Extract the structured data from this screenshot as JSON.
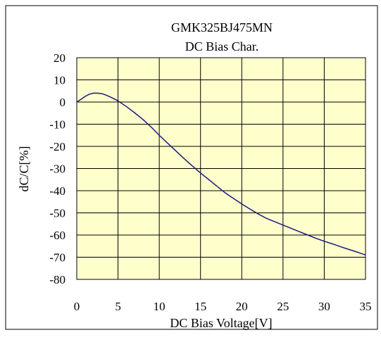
{
  "chart_data": {
    "type": "line",
    "title": "GMK325BJ475MN",
    "subtitle": "DC Bias Char.",
    "xlabel": "DC Bias Voltage[V]",
    "ylabel": "dC/C[%]",
    "xlim": [
      0,
      35
    ],
    "ylim": [
      -80,
      20
    ],
    "x_ticks": [
      "0",
      "5",
      "10",
      "15",
      "20",
      "25",
      "30",
      "35"
    ],
    "y_ticks": [
      "20",
      "10",
      "0",
      "-10",
      "-20",
      "-30",
      "-40",
      "-50",
      "-60",
      "-70",
      "-80"
    ],
    "grid": true,
    "legend": "none",
    "colors": {
      "plot_background": "#ffffcc",
      "line": "#1a1a80",
      "grid": "#000000"
    },
    "series": [
      {
        "x": [
          0,
          0.5,
          1,
          1.5,
          2,
          2.5,
          3,
          3.5,
          4,
          4.5,
          5,
          6,
          7,
          8,
          9,
          10,
          11,
          12,
          13,
          14,
          15,
          16,
          17,
          18,
          19,
          20,
          21,
          22,
          23,
          24,
          25,
          26,
          27,
          28,
          29,
          30,
          31,
          32,
          33,
          34,
          35
        ],
        "y": [
          0,
          1.2,
          2.5,
          3.5,
          4.0,
          4.0,
          3.8,
          3.2,
          2.4,
          1.5,
          0.5,
          -2.0,
          -4.8,
          -7.8,
          -11.2,
          -15.0,
          -18.5,
          -22.0,
          -25.5,
          -28.8,
          -32.0,
          -35.0,
          -38.0,
          -41.0,
          -43.5,
          -46.0,
          -48.3,
          -50.5,
          -52.5,
          -54.0,
          -55.5,
          -57.0,
          -58.5,
          -60.0,
          -61.5,
          -62.8,
          -64.0,
          -65.3,
          -66.5,
          -67.7,
          -69.0
        ]
      }
    ]
  }
}
